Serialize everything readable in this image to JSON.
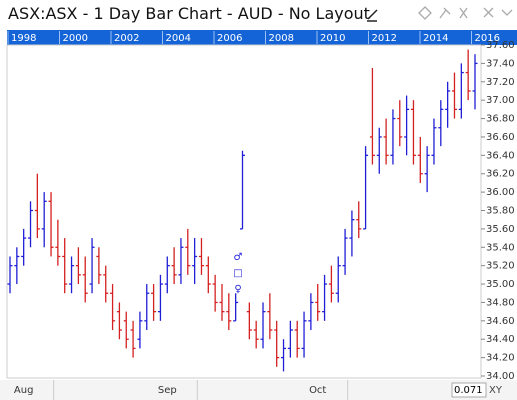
{
  "header": {
    "title": "ASX:ASX - 1 Day Bar Chart - AUD - No Layout"
  },
  "navigator_years": [
    "1998",
    "2000",
    "2002",
    "2004",
    "2006",
    "2008",
    "2010",
    "2012",
    "2014",
    "2016"
  ],
  "chart_data": {
    "type": "ohlc",
    "up_color": "#1f1fd6",
    "down_color": "#d42020",
    "ylim": [
      34,
      37.6
    ],
    "yticks": [
      {
        "value": 34,
        "label": "34.00"
      },
      {
        "value": 34.2,
        "label": "34.20"
      },
      {
        "value": 34.4,
        "label": "34.40"
      },
      {
        "value": 34.6,
        "label": "34.60"
      },
      {
        "value": 34.8,
        "label": "34.80"
      },
      {
        "value": 35,
        "label": "35.00"
      },
      {
        "value": 35.2,
        "label": "35.20"
      },
      {
        "value": 35.4,
        "label": "35.40"
      },
      {
        "value": 35.6,
        "label": "35.60"
      },
      {
        "value": 35.8,
        "label": "35.80"
      },
      {
        "value": 36,
        "label": "36.00"
      },
      {
        "value": 36.2,
        "label": "36.20"
      },
      {
        "value": 36.4,
        "label": "36.40"
      },
      {
        "value": 36.6,
        "label": "36.60"
      },
      {
        "value": 36.8,
        "label": "36.80"
      },
      {
        "value": 37,
        "label": "37.00"
      },
      {
        "value": 37.2,
        "label": "37.20"
      },
      {
        "value": 37.4,
        "label": "37.40"
      },
      {
        "value": 37.6,
        "label": "37.60"
      }
    ],
    "categories": [
      null,
      null,
      "Aug",
      null,
      null,
      null,
      null,
      null,
      null,
      null,
      null,
      null,
      null,
      null,
      null,
      null,
      null,
      null,
      null,
      null,
      null,
      null,
      null,
      "Sep",
      null,
      null,
      null,
      null,
      null,
      null,
      null,
      null,
      null,
      null,
      null,
      null,
      null,
      null,
      null,
      null,
      null,
      null,
      null,
      null,
      null,
      "Oct",
      null,
      null,
      null,
      null,
      null,
      null,
      null,
      null,
      null,
      null,
      null,
      null,
      null,
      null,
      null,
      null,
      null,
      null,
      null,
      null,
      null,
      null,
      null
    ],
    "open": [
      35.0,
      35.2,
      35.3,
      35.5,
      35.8,
      35.6,
      35.9,
      35.4,
      35.3,
      35.0,
      35.2,
      35.1,
      35.0,
      35.3,
      35.1,
      34.9,
      34.7,
      34.6,
      34.5,
      34.4,
      34.6,
      34.9,
      34.7,
      35.0,
      35.2,
      35.1,
      35.4,
      35.2,
      35.3,
      35.2,
      35.0,
      34.8,
      34.7,
      34.6,
      35.6,
      34.7,
      34.5,
      34.4,
      34.7,
      34.5,
      34.2,
      34.3,
      34.5,
      34.3,
      34.6,
      34.8,
      34.7,
      35.0,
      34.9,
      35.2,
      35.5,
      35.7,
      35.6,
      36.6,
      36.4,
      36.6,
      36.4,
      36.8,
      36.6,
      36.9,
      36.4,
      36.2,
      36.4,
      36.7,
      36.9,
      37.1,
      36.9,
      37.3,
      37.1
    ],
    "high": [
      35.3,
      35.4,
      35.6,
      35.9,
      36.2,
      36.0,
      36.0,
      35.7,
      35.5,
      35.3,
      35.4,
      35.3,
      35.5,
      35.4,
      35.2,
      35.0,
      34.8,
      34.7,
      34.6,
      34.7,
      35.0,
      35.0,
      35.1,
      35.3,
      35.4,
      35.5,
      35.6,
      35.5,
      35.5,
      35.3,
      35.1,
      35.0,
      34.9,
      34.9,
      36.45,
      34.8,
      34.6,
      34.8,
      34.9,
      34.6,
      34.4,
      34.6,
      34.6,
      34.7,
      34.9,
      35.0,
      35.1,
      35.2,
      35.3,
      35.6,
      35.8,
      35.9,
      36.5,
      37.35,
      36.7,
      36.8,
      36.9,
      37.0,
      37.05,
      37.0,
      36.6,
      36.5,
      36.8,
      37.0,
      37.2,
      37.3,
      37.4,
      37.55,
      37.5
    ],
    "low": [
      34.9,
      35.0,
      35.2,
      35.4,
      35.5,
      35.4,
      35.3,
      35.2,
      34.9,
      34.9,
      35.0,
      34.8,
      34.9,
      35.0,
      34.8,
      34.5,
      34.4,
      34.3,
      34.2,
      34.3,
      34.5,
      34.6,
      34.6,
      34.9,
      35.0,
      35.0,
      35.1,
      35.0,
      35.1,
      34.9,
      34.7,
      34.6,
      34.5,
      34.6,
      35.6,
      34.4,
      34.3,
      34.3,
      34.4,
      34.1,
      34.05,
      34.2,
      34.2,
      34.2,
      34.5,
      34.6,
      34.6,
      34.8,
      34.8,
      35.1,
      35.3,
      35.5,
      35.6,
      36.3,
      36.2,
      36.3,
      36.3,
      36.5,
      36.4,
      36.3,
      36.1,
      36.0,
      36.3,
      36.5,
      36.7,
      36.8,
      36.8,
      37.0,
      36.9
    ],
    "close": [
      35.2,
      35.3,
      35.5,
      35.8,
      35.6,
      35.9,
      35.4,
      35.3,
      35.0,
      35.2,
      35.1,
      34.9,
      35.4,
      35.1,
      34.9,
      34.6,
      34.5,
      34.4,
      34.3,
      34.6,
      34.9,
      34.7,
      35.0,
      35.2,
      35.1,
      35.4,
      35.2,
      35.3,
      35.2,
      35.0,
      34.8,
      34.7,
      34.6,
      34.8,
      36.4,
      34.5,
      34.4,
      34.7,
      34.5,
      34.2,
      34.3,
      34.5,
      34.3,
      34.6,
      34.8,
      34.7,
      35.0,
      34.9,
      35.2,
      35.5,
      35.7,
      35.6,
      36.4,
      36.4,
      36.6,
      36.4,
      36.8,
      36.6,
      36.9,
      36.4,
      36.2,
      36.4,
      36.7,
      36.9,
      37.1,
      36.9,
      37.3,
      37.1,
      37.4
    ],
    "annotations": [
      "♂",
      "□",
      "♀"
    ]
  },
  "footer": {
    "zoom_value": "0.071",
    "zoom_mode": "XY"
  }
}
